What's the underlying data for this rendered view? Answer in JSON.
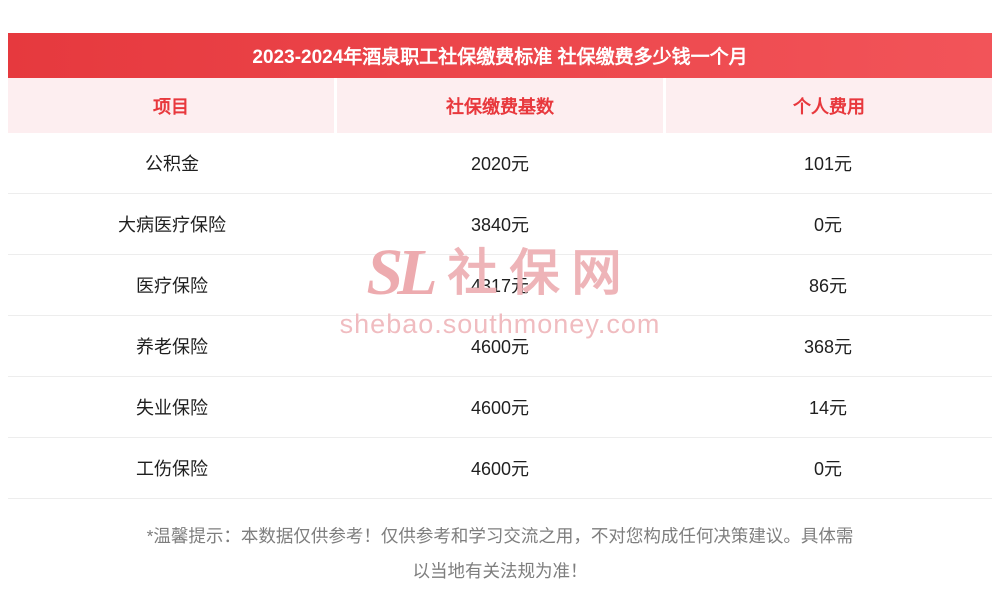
{
  "title_bar": {
    "text": "2023-2024年酒泉职工社保缴费标准 社保缴费多少钱一个月"
  },
  "chart_data": {
    "type": "table",
    "title": "2023-2024年酒泉职工社保缴费标准 社保缴费多少钱一个月",
    "columns": [
      "项目",
      "社保缴费基数",
      "个人费用"
    ],
    "rows": [
      [
        "公积金",
        "2020元",
        "101元"
      ],
      [
        "大病医疗保险",
        "3840元",
        "0元"
      ],
      [
        "医疗保险",
        "4317元",
        "86元"
      ],
      [
        "养老保险",
        "4600元",
        "368元"
      ],
      [
        "失业保险",
        "4600元",
        "14元"
      ],
      [
        "工伤保险",
        "4600元",
        "0元"
      ]
    ]
  },
  "watermark": {
    "logo": "SL",
    "brand": "社保网",
    "url": "shebao.southmoney.com"
  },
  "footer": {
    "line1": "*温馨提示：本数据仅供参考！仅供参考和学习交流之用，不对您构成任何决策建议。具体需",
    "line2": "以当地有关法规为准！"
  },
  "colors": {
    "accent_red": "#e8383d",
    "header_bg": "#fdeef0",
    "title_gradient_start": "#e6393e",
    "title_gradient_end": "#f25459",
    "watermark_pink": "#eeb4b8",
    "footer_gray": "#7e7e7e"
  }
}
